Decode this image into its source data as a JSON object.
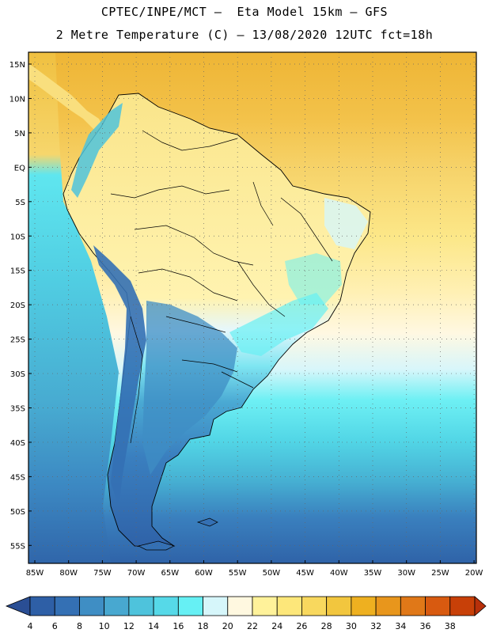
{
  "header": {
    "line1": "CPTEC/INPE/MCT –  Eta Model 15km – GFS",
    "line2": "2 Metre Temperature (C) – 13/08/2020 12UTC fct=18h"
  },
  "map": {
    "latitude_labels": [
      "15N",
      "10N",
      "5N",
      "EQ",
      "5S",
      "10S",
      "15S",
      "20S",
      "25S",
      "30S",
      "35S",
      "40S",
      "45S",
      "50S",
      "55S"
    ],
    "longitude_labels": [
      "85W",
      "80W",
      "75W",
      "70W",
      "65W",
      "60W",
      "55W",
      "50W",
      "45W",
      "40W",
      "35W",
      "30W",
      "25W",
      "20W"
    ],
    "extent": {
      "lat_range": [
        17,
        -58
      ],
      "lon_range": [
        -86,
        -19
      ]
    },
    "gridlines": "dotted",
    "region": "South America"
  },
  "colorbar": {
    "labels": [
      "4",
      "6",
      "8",
      "10",
      "12",
      "14",
      "16",
      "18",
      "20",
      "22",
      "24",
      "26",
      "28",
      "30",
      "32",
      "34",
      "36",
      "38"
    ],
    "colors": [
      "#2e5fa6",
      "#3470b4",
      "#3f8ec4",
      "#48a8d0",
      "#4ec3dc",
      "#56d9e8",
      "#66f0f4",
      "#d6f6fa",
      "#fff8e0",
      "#fff29a",
      "#fde77a",
      "#f8d85e",
      "#f2c63e",
      "#eeb020",
      "#e8961c",
      "#e07818",
      "#d85a10",
      "#c84008"
    ],
    "under_color": "#2a4e94",
    "over_color": "#b8300a"
  }
}
